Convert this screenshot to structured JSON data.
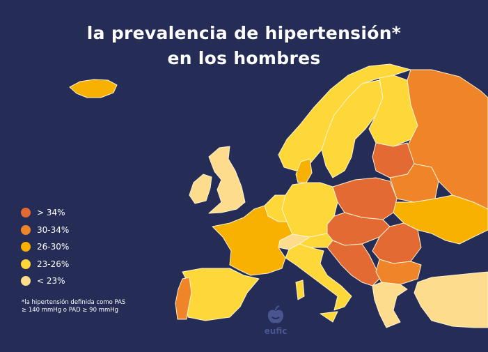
{
  "title": {
    "line1": "la prevalencia de hipertensión*",
    "line2": "en los hombres"
  },
  "legend": [
    {
      "label": "> 34%",
      "color": "#e46a33"
    },
    {
      "label": "30-34%",
      "color": "#f08428"
    },
    {
      "label": "26-30%",
      "color": "#f8b100"
    },
    {
      "label": "23-26%",
      "color": "#fed838"
    },
    {
      "label": "< 23%",
      "color": "#fddc8d"
    }
  ],
  "footnote": {
    "line1": "*la hipertensión definida como PAS",
    "line2": "≥ 140 mmHg o PAD ≥ 90 mmHg"
  },
  "logo": {
    "text": "eufic"
  },
  "background": "#252c55"
}
